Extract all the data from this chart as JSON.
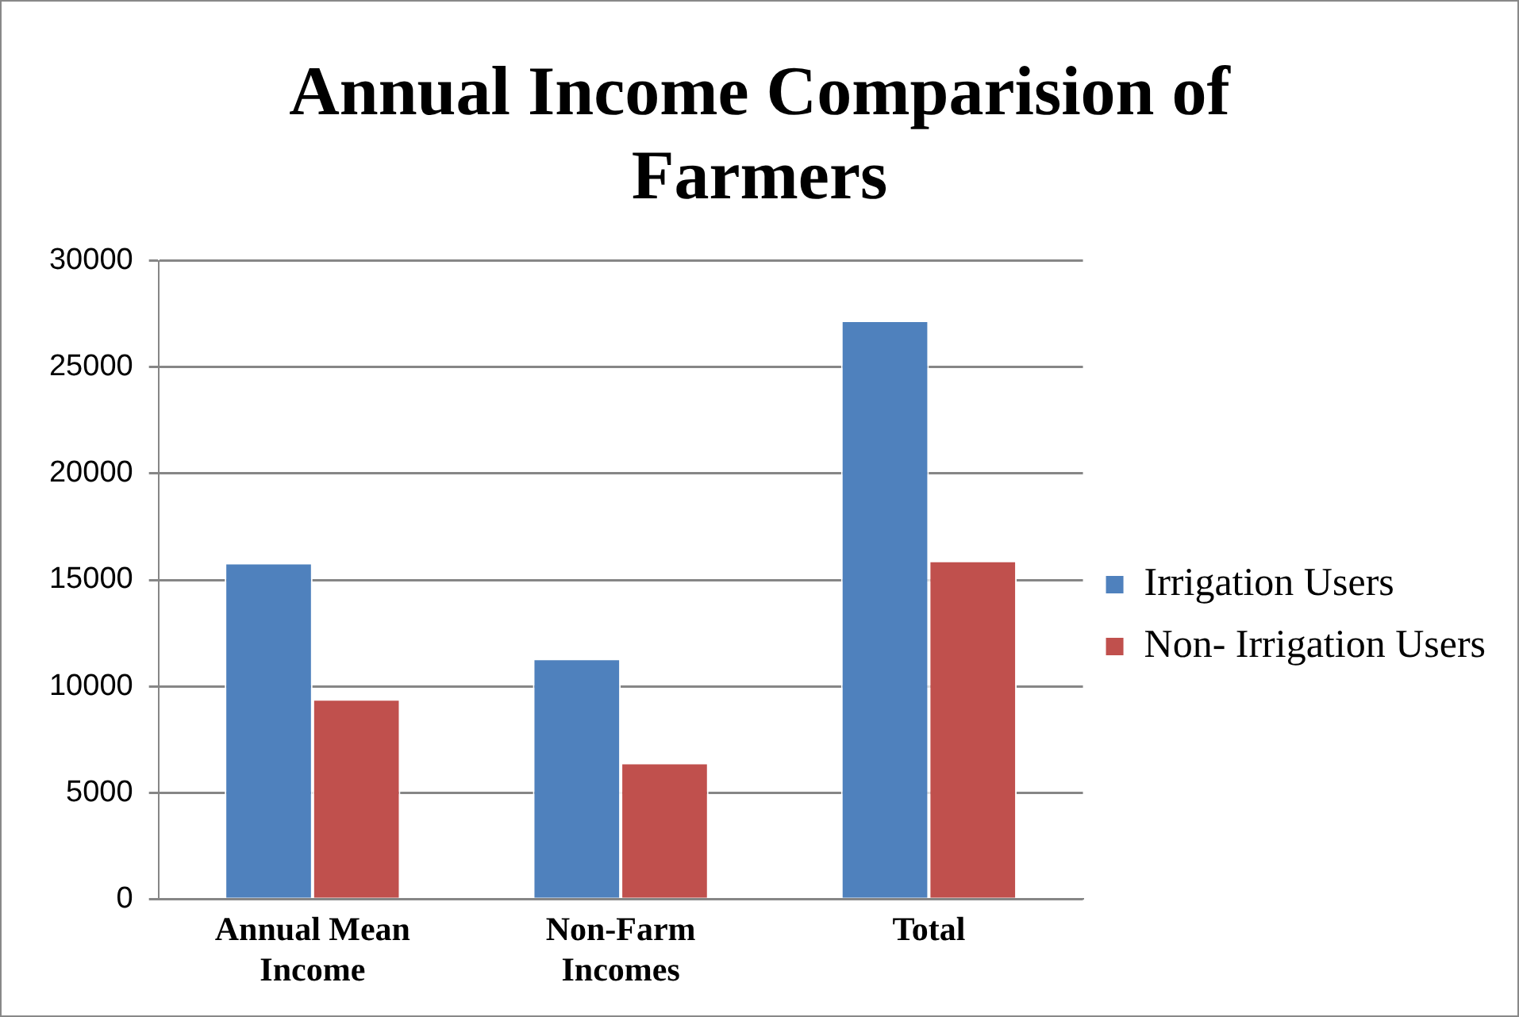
{
  "chart_data": {
    "type": "bar",
    "title": "Annual Income Comparision of Farmers",
    "categories": [
      "Annual Mean Income",
      "Non-Farm Incomes",
      "Total"
    ],
    "series": [
      {
        "name": "Irrigation Users",
        "color": "#4f81bd",
        "values": [
          15800,
          11300,
          27200
        ]
      },
      {
        "name": "Non- Irrigation Users",
        "color": "#c0504d",
        "values": [
          9400,
          6400,
          15900
        ]
      }
    ],
    "ylim": [
      0,
      30000
    ],
    "yticks": [
      0,
      5000,
      10000,
      15000,
      20000,
      25000,
      30000
    ],
    "grid": "y",
    "legend": "right"
  }
}
